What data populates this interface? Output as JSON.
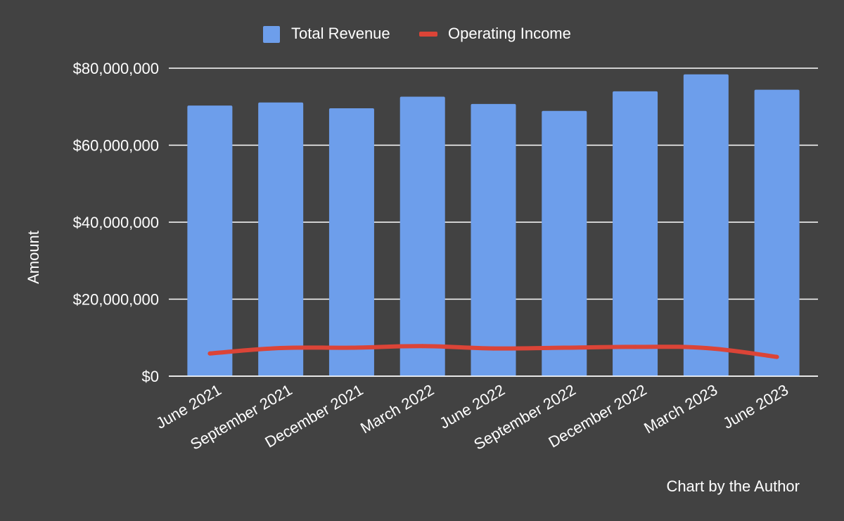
{
  "chart_data": {
    "type": "bar",
    "title": "",
    "xlabel": "",
    "ylabel": "Amount",
    "ylim": [
      0,
      80000000
    ],
    "yticks": [
      0,
      20000000,
      40000000,
      60000000,
      80000000
    ],
    "ytick_labels": [
      "$0",
      "$20,000,000",
      "$40,000,000",
      "$60,000,000",
      "$80,000,000"
    ],
    "grid": true,
    "legend_position": "top",
    "categories": [
      "June 2021",
      "September 2021",
      "December 2021",
      "March 2022",
      "June 2022",
      "September 2022",
      "December 2022",
      "March 2023",
      "June 2023"
    ],
    "series": [
      {
        "name": "Total Revenue",
        "type": "bar",
        "color": "#6d9eeb",
        "values": [
          70300000,
          71100000,
          69600000,
          72600000,
          70700000,
          68900000,
          74000000,
          78400000,
          74400000
        ]
      },
      {
        "name": "Operating Income",
        "type": "line",
        "color": "#db4437",
        "values": [
          5900000,
          7300000,
          7400000,
          7800000,
          7200000,
          7400000,
          7600000,
          7300000,
          5000000
        ]
      }
    ],
    "footnote": "Chart by the Author"
  },
  "colors": {
    "background": "#424242",
    "text": "#ffffff",
    "grid": "#ffffff"
  }
}
